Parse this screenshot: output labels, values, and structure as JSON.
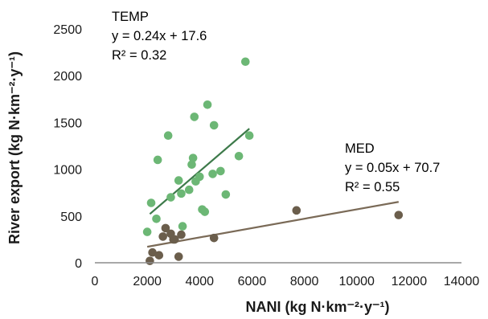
{
  "chart_data": {
    "type": "scatter",
    "title": "",
    "xlabel": "NANI (kg N·km⁻²·y⁻¹)",
    "ylabel": "River export (kg N·km⁻²·y⁻¹)",
    "xlim": [
      0,
      14000
    ],
    "ylim": [
      0,
      2500
    ],
    "xticks": [
      "0",
      "2000",
      "4000",
      "6000",
      "8000",
      "10000",
      "12000",
      "14000"
    ],
    "yticks": [
      "0",
      "500",
      "1000",
      "1500",
      "2000",
      "2500"
    ],
    "grid": false,
    "series": [
      {
        "name": "TEMP",
        "color": "#6cb775",
        "trend_color": "#3d7a4a",
        "equation": "y = 0.24x + 17.6",
        "r2": "R² = 0.32",
        "slope": 0.24,
        "intercept": 17.6,
        "trend_x": [
          2100,
          5900
        ],
        "points": [
          [
            2000,
            330
          ],
          [
            2150,
            640
          ],
          [
            2350,
            470
          ],
          [
            2400,
            1100
          ],
          [
            2800,
            1360
          ],
          [
            2900,
            700
          ],
          [
            3200,
            880
          ],
          [
            3300,
            740
          ],
          [
            3350,
            390
          ],
          [
            3600,
            780
          ],
          [
            3700,
            1050
          ],
          [
            3750,
            1120
          ],
          [
            3800,
            1560
          ],
          [
            3850,
            870
          ],
          [
            4000,
            920
          ],
          [
            4100,
            570
          ],
          [
            4200,
            545
          ],
          [
            4300,
            1690
          ],
          [
            4500,
            950
          ],
          [
            4550,
            1470
          ],
          [
            4800,
            980
          ],
          [
            5000,
            730
          ],
          [
            5500,
            1140
          ],
          [
            5750,
            2150
          ],
          [
            5900,
            1360
          ]
        ]
      },
      {
        "name": "MED",
        "color": "#6b5e4c",
        "trend_color": "#7a6a57",
        "equation": "y = 0.05x + 70.7",
        "r2": "R² = 0.55",
        "slope": 0.05,
        "intercept": 70.7,
        "trend_x": [
          2000,
          11600
        ],
        "points": [
          [
            2100,
            20
          ],
          [
            2200,
            110
          ],
          [
            2450,
            80
          ],
          [
            2600,
            280
          ],
          [
            2700,
            370
          ],
          [
            2900,
            310
          ],
          [
            3000,
            250
          ],
          [
            3050,
            250
          ],
          [
            3200,
            65
          ],
          [
            3300,
            300
          ],
          [
            4550,
            265
          ],
          [
            7700,
            560
          ],
          [
            11600,
            510
          ]
        ]
      }
    ]
  }
}
